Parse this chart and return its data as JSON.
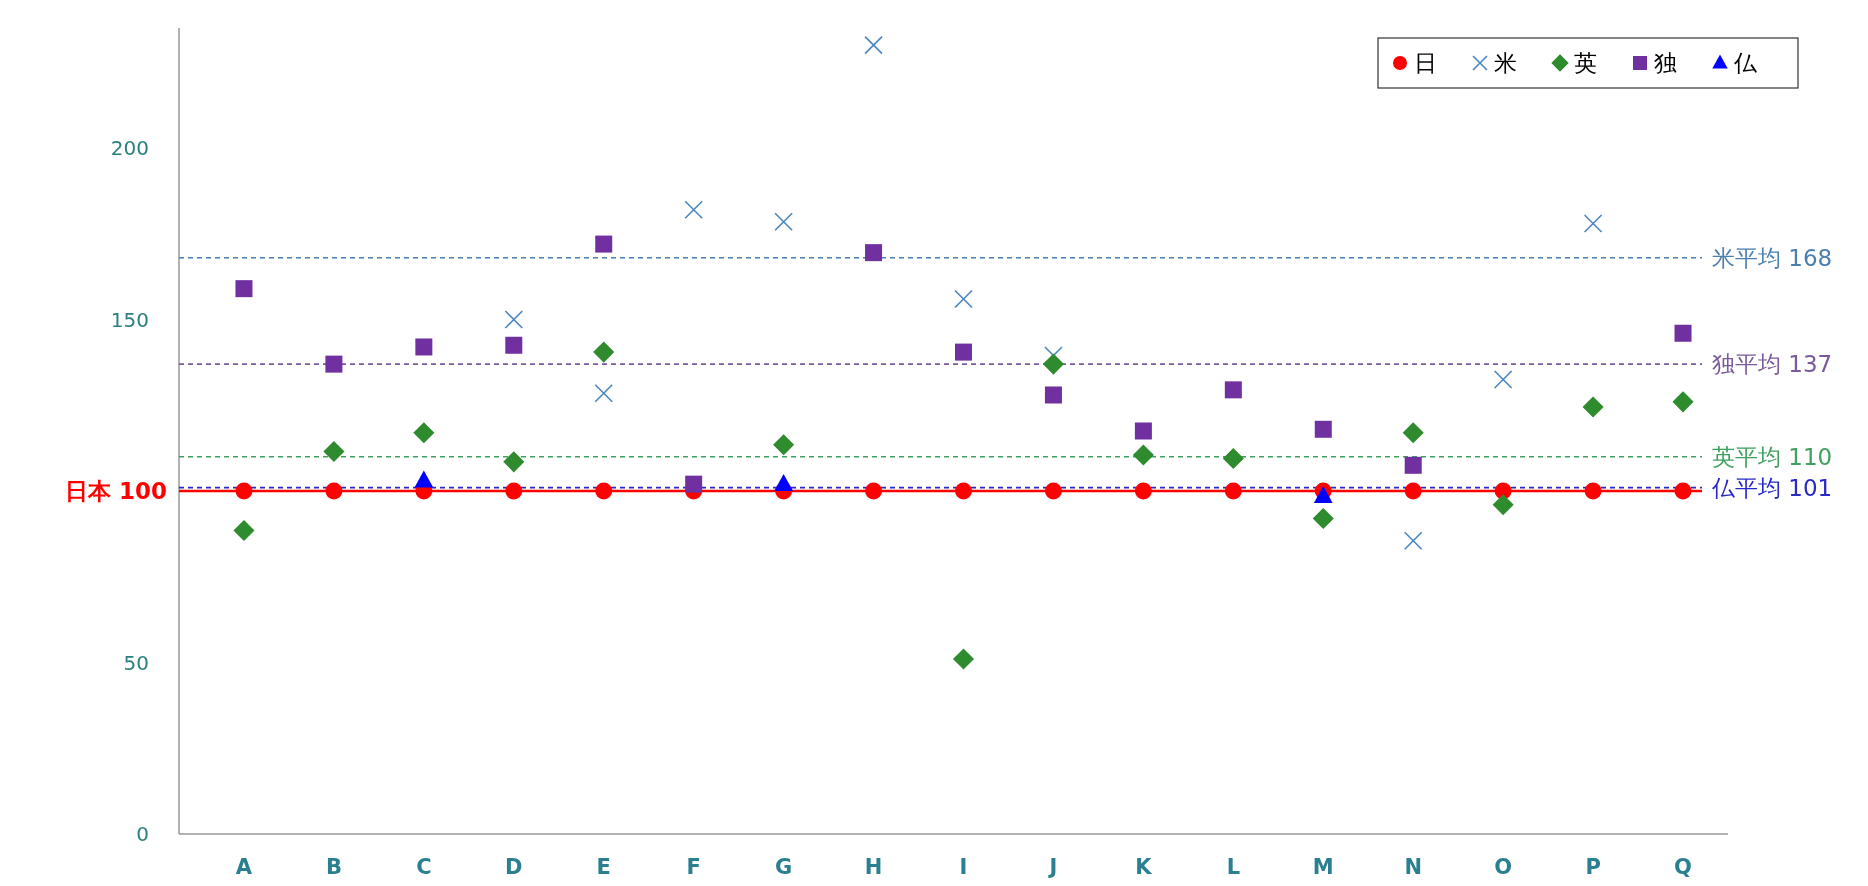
{
  "chart_data": {
    "type": "scatter",
    "categories": [
      "A",
      "B",
      "C",
      "D",
      "E",
      "F",
      "G",
      "H",
      "I",
      "J",
      "K",
      "L",
      "M",
      "N",
      "O",
      "P",
      "Q"
    ],
    "ylim": [
      0,
      235
    ],
    "yticks": [
      0,
      50,
      150,
      200
    ],
    "grid": false,
    "legend": "top right",
    "series": [
      {
        "name": "日",
        "color": "#ff0000",
        "marker": "circle",
        "values": [
          100,
          100,
          100,
          100,
          100,
          100,
          100,
          100,
          100,
          100,
          100,
          100,
          100,
          100,
          100,
          100,
          100
        ]
      },
      {
        "name": "米",
        "color": "#4a86c0",
        "marker": "cross",
        "values": [
          null,
          null,
          null,
          150,
          128.5,
          182,
          178.5,
          230,
          156,
          139.5,
          null,
          null,
          null,
          85.5,
          132.5,
          178,
          null
        ]
      },
      {
        "name": "英",
        "color": "#2e8b2e",
        "marker": "diamond",
        "values": [
          88.5,
          111.5,
          117,
          108.5,
          140.5,
          null,
          113.5,
          null,
          51,
          137,
          110.5,
          109.5,
          92,
          117,
          96,
          124.5,
          126
        ]
      },
      {
        "name": "独",
        "color": "#7030a0",
        "marker": "square",
        "values": [
          159,
          137,
          142,
          142.5,
          172,
          102,
          null,
          169.5,
          140.5,
          128,
          117.5,
          129.5,
          118,
          107.5,
          null,
          null,
          146
        ]
      },
      {
        "name": "仏",
        "color": "#0000ff",
        "marker": "triangle",
        "values": [
          null,
          null,
          103,
          null,
          null,
          null,
          102,
          null,
          null,
          null,
          null,
          null,
          98.5,
          null,
          null,
          null,
          null
        ]
      }
    ],
    "ref_lines": [
      {
        "axis": "y",
        "value": 100,
        "label": "日本 100",
        "color": "#ff0000",
        "line_style": "solid"
      },
      {
        "axis": "y",
        "value": 168,
        "label": "米平均 168",
        "color": "#4a7fb0",
        "line_style": "dashed"
      },
      {
        "axis": "y",
        "value": 137,
        "label": "独平均 137",
        "color": "#7a5a9a",
        "line_style": "dashed"
      },
      {
        "axis": "y",
        "value": 110,
        "label": "英平均 110",
        "color": "#40a060",
        "line_style": "dashed"
      },
      {
        "axis": "y",
        "value": 101,
        "label": "仏平均 101",
        "color": "#2828c8",
        "line_style": "dashed"
      }
    ]
  }
}
